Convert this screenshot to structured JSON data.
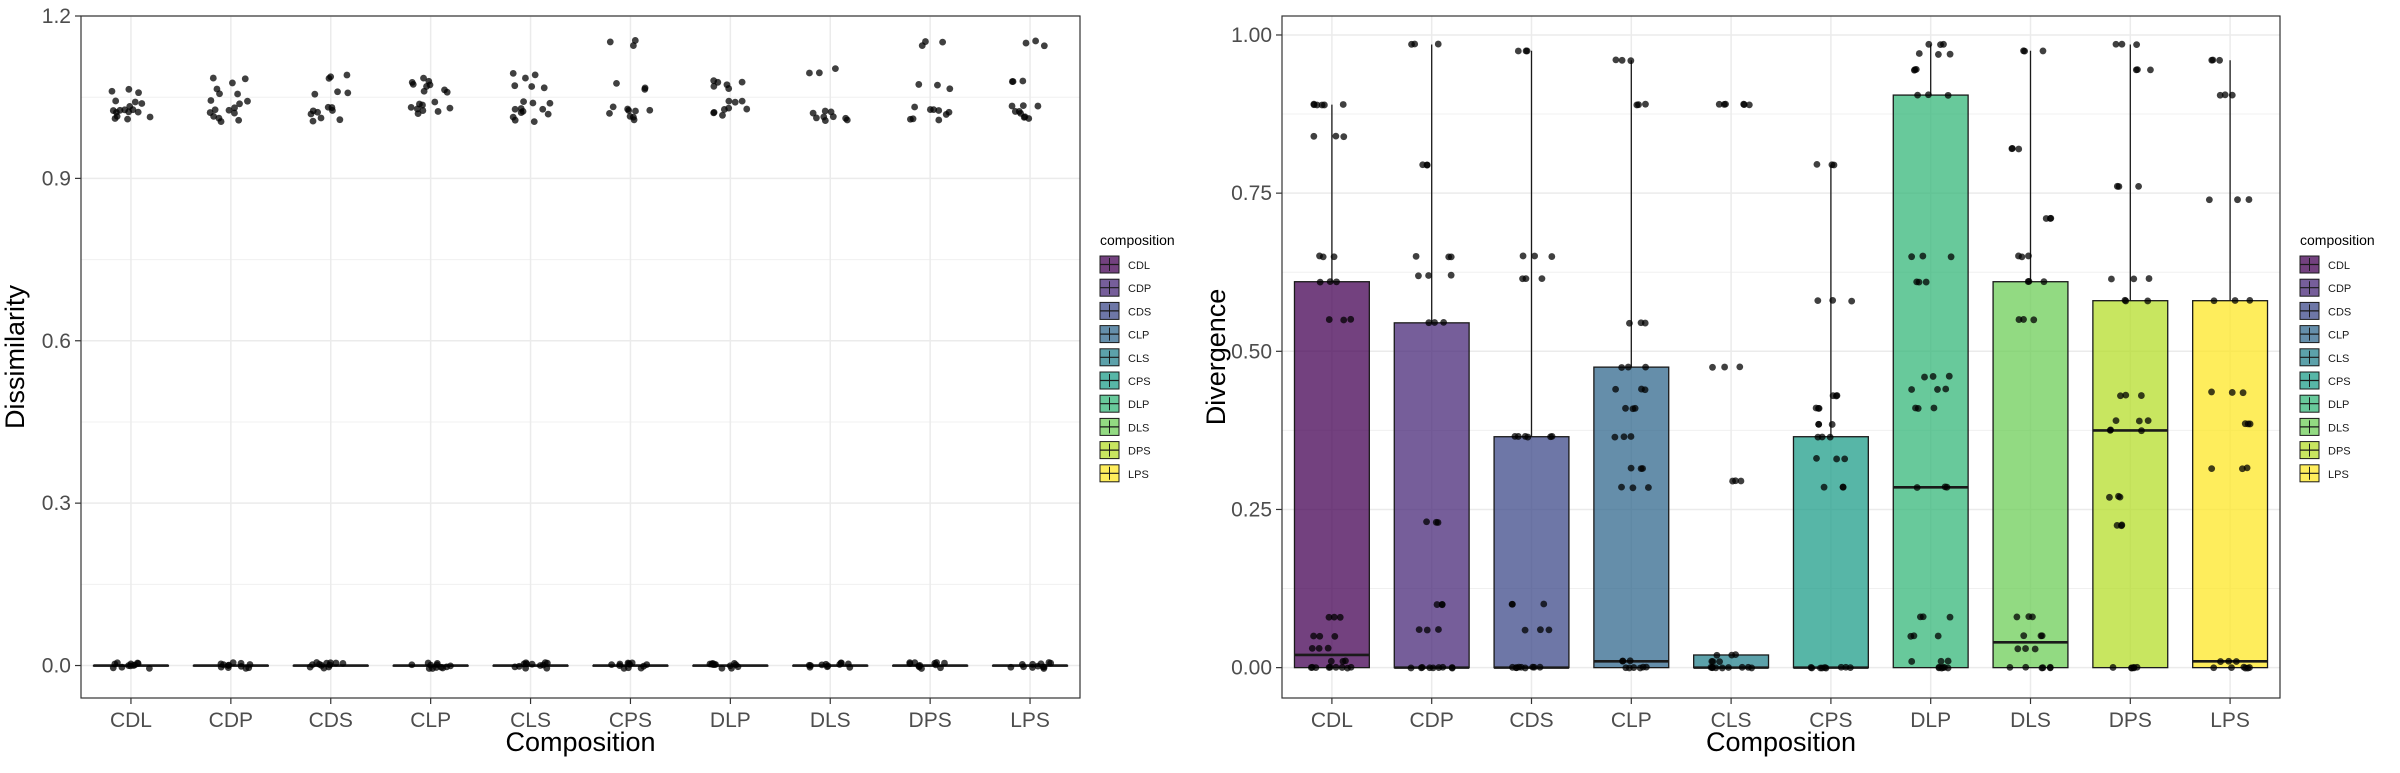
{
  "legend": {
    "title": "composition",
    "colors": {
      "CDL": "#440154",
      "CDP": "#482878",
      "CDS": "#3e4989",
      "CLP": "#31688e",
      "CLS": "#26828e",
      "CPS": "#1f9e89",
      "DLP": "#35b779",
      "DLS": "#6ece58",
      "DPS": "#b5de2b",
      "LPS": "#fde725"
    }
  },
  "chart_data": [
    {
      "type": "boxplot",
      "xlabel": "Composition",
      "ylabel": "Dissimilarity",
      "categories": [
        "CDL",
        "CDP",
        "CDS",
        "CLP",
        "CLS",
        "CPS",
        "DLP",
        "DLS",
        "DPS",
        "LPS"
      ],
      "ylim": [
        -0.06,
        1.2
      ],
      "yticks": [
        "0.0",
        "0.3",
        "0.6",
        "0.9",
        "1.2"
      ],
      "ytick_values": [
        0.0,
        0.3,
        0.6,
        0.9,
        1.2
      ],
      "grid": true,
      "legend": "right",
      "boxes": [
        {
          "q1": 0,
          "median": 0,
          "q3": 0,
          "whisker_low": 0,
          "whisker_high": 0
        },
        {
          "q1": 0,
          "median": 0,
          "q3": 0,
          "whisker_low": 0,
          "whisker_high": 0
        },
        {
          "q1": 0,
          "median": 0,
          "q3": 0,
          "whisker_low": 0,
          "whisker_high": 0
        },
        {
          "q1": 0,
          "median": 0,
          "q3": 0,
          "whisker_low": 0,
          "whisker_high": 0
        },
        {
          "q1": 0,
          "median": 0,
          "q3": 0,
          "whisker_low": 0,
          "whisker_high": 0
        },
        {
          "q1": 0,
          "median": 0,
          "q3": 0,
          "whisker_low": 0,
          "whisker_high": 0
        },
        {
          "q1": 0,
          "median": 0,
          "q3": 0,
          "whisker_low": 0,
          "whisker_high": 0
        },
        {
          "q1": 0,
          "median": 0,
          "q3": 0,
          "whisker_low": 0,
          "whisker_high": 0
        },
        {
          "q1": 0,
          "median": 0,
          "q3": 0,
          "whisker_low": 0,
          "whisker_high": 0
        },
        {
          "q1": 0,
          "median": 0,
          "q3": 0,
          "whisker_low": 0,
          "whisker_high": 0
        }
      ],
      "points": [
        [
          0,
          0,
          0,
          0,
          1.01,
          1.02,
          1.025,
          1.03,
          1.04,
          1.06
        ],
        [
          0,
          0,
          0,
          0,
          1.01,
          1.02,
          1.03,
          1.04,
          1.06,
          1.08
        ],
        [
          0,
          0,
          0,
          0,
          1.01,
          1.02,
          1.03,
          1.06,
          1.09
        ],
        [
          0,
          0,
          0,
          0,
          1.02,
          1.03,
          1.04,
          1.06,
          1.07,
          1.08
        ],
        [
          0,
          0,
          0,
          0,
          1.01,
          1.02,
          1.03,
          1.04,
          1.07,
          1.09
        ],
        [
          0,
          0,
          0,
          0,
          1.01,
          1.02,
          1.03,
          1.07,
          1.15
        ],
        [
          0,
          0,
          0,
          0,
          1.02,
          1.03,
          1.04,
          1.07,
          1.08
        ],
        [
          0,
          0,
          0,
          0,
          1.01,
          1.015,
          1.02,
          1.1
        ],
        [
          0,
          0,
          0,
          0,
          1.01,
          1.02,
          1.03,
          1.07,
          1.15
        ],
        [
          0,
          0,
          0,
          0,
          1.01,
          1.02,
          1.03,
          1.08,
          1.15
        ]
      ]
    },
    {
      "type": "boxplot",
      "xlabel": "Composition",
      "ylabel": "Divergence",
      "categories": [
        "CDL",
        "CDP",
        "CDS",
        "CLP",
        "CLS",
        "CPS",
        "DLP",
        "DLS",
        "DPS",
        "LPS"
      ],
      "ylim": [
        -0.048,
        1.03
      ],
      "yticks": [
        "0.00",
        "0.25",
        "0.50",
        "0.75",
        "1.00"
      ],
      "ytick_values": [
        0.0,
        0.25,
        0.5,
        0.75,
        1.0
      ],
      "grid": true,
      "legend": "right",
      "boxes": [
        {
          "q1": 0.0,
          "median": 0.02,
          "q3": 0.61,
          "whisker_low": 0.0,
          "whisker_high": 0.89
        },
        {
          "q1": 0.0,
          "median": 0.0,
          "q3": 0.545,
          "whisker_low": 0.0,
          "whisker_high": 0.985
        },
        {
          "q1": 0.0,
          "median": 0.0,
          "q3": 0.365,
          "whisker_low": 0.0,
          "whisker_high": 0.975
        },
        {
          "q1": 0.0,
          "median": 0.01,
          "q3": 0.475,
          "whisker_low": 0.0,
          "whisker_high": 0.96
        },
        {
          "q1": 0.0,
          "median": 0.0,
          "q3": 0.02,
          "whisker_low": 0.0,
          "whisker_high": 0.02
        },
        {
          "q1": 0.0,
          "median": 0.0,
          "q3": 0.365,
          "whisker_low": 0.0,
          "whisker_high": 0.795
        },
        {
          "q1": 0.0,
          "median": 0.285,
          "q3": 0.905,
          "whisker_low": 0.0,
          "whisker_high": 0.985
        },
        {
          "q1": 0.0,
          "median": 0.04,
          "q3": 0.61,
          "whisker_low": 0.0,
          "whisker_high": 0.975
        },
        {
          "q1": 0.0,
          "median": 0.375,
          "q3": 0.58,
          "whisker_low": 0.0,
          "whisker_high": 0.985
        },
        {
          "q1": 0.0,
          "median": 0.01,
          "q3": 0.58,
          "whisker_low": 0.0,
          "whisker_high": 0.96
        }
      ],
      "points": [
        [
          0,
          0,
          0,
          0.01,
          0.03,
          0.05,
          0.08,
          0.55,
          0.61,
          0.65,
          0.84,
          0.89,
          0.89
        ],
        [
          0,
          0,
          0,
          0.06,
          0.1,
          0.23,
          0.545,
          0.62,
          0.65,
          0.795,
          0.985
        ],
        [
          0,
          0,
          0,
          0.06,
          0.1,
          0.365,
          0.365,
          0.615,
          0.65,
          0.975
        ],
        [
          0,
          0,
          0.01,
          0.285,
          0.315,
          0.365,
          0.41,
          0.44,
          0.475,
          0.545,
          0.89,
          0.96
        ],
        [
          0,
          0,
          0,
          0.01,
          0.02,
          0.295,
          0.475,
          0.89,
          0.89
        ],
        [
          0,
          0,
          0,
          0.285,
          0.33,
          0.365,
          0.385,
          0.41,
          0.43,
          0.58,
          0.795
        ],
        [
          0,
          0,
          0.01,
          0.05,
          0.08,
          0.285,
          0.41,
          0.44,
          0.46,
          0.61,
          0.65,
          0.905,
          0.945,
          0.97,
          0.985
        ],
        [
          0,
          0,
          0.03,
          0.05,
          0.08,
          0.55,
          0.61,
          0.65,
          0.71,
          0.82,
          0.975
        ],
        [
          0,
          0,
          0.225,
          0.27,
          0.375,
          0.39,
          0.43,
          0.58,
          0.615,
          0.76,
          0.945,
          0.985
        ],
        [
          0,
          0,
          0.01,
          0.315,
          0.385,
          0.435,
          0.58,
          0.74,
          0.905,
          0.96
        ]
      ]
    }
  ]
}
